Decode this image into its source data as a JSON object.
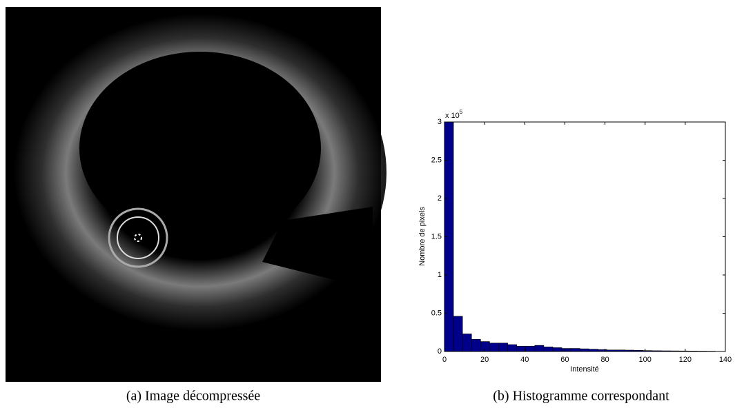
{
  "captions": [
    "(a) Image décompressée",
    "(b) Histogramme correspondant"
  ],
  "chart_data": {
    "type": "histogram",
    "xlabel": "Intensité",
    "ylabel": "Nombre de pixels",
    "y_scale_base": "x 10",
    "y_scale_exponent": "5",
    "bins": [
      0,
      4.5,
      9,
      13.5,
      18,
      22.5,
      27,
      31.5,
      36,
      40.5,
      45,
      49.5,
      54,
      58.5,
      63,
      67.5,
      72,
      76.5,
      81,
      85.5,
      90,
      94.5,
      99,
      103.5,
      108,
      112.5,
      117,
      121.5,
      126,
      130.5,
      135
    ],
    "values": [
      3.0,
      0.46,
      0.23,
      0.16,
      0.13,
      0.11,
      0.11,
      0.09,
      0.07,
      0.07,
      0.08,
      0.06,
      0.05,
      0.04,
      0.04,
      0.035,
      0.03,
      0.025,
      0.02,
      0.02,
      0.018,
      0.015,
      0.012,
      0.01,
      0.009,
      0.008,
      0.007,
      0.006,
      0.005,
      0.004
    ],
    "color": "#00008b",
    "xlim": [
      0,
      140
    ],
    "xticks": [
      0,
      20,
      40,
      60,
      80,
      100,
      120,
      140
    ],
    "ylim": [
      0,
      3
    ],
    "yticks": [
      0,
      0.5,
      1,
      1.5,
      2,
      2.5,
      3
    ]
  }
}
